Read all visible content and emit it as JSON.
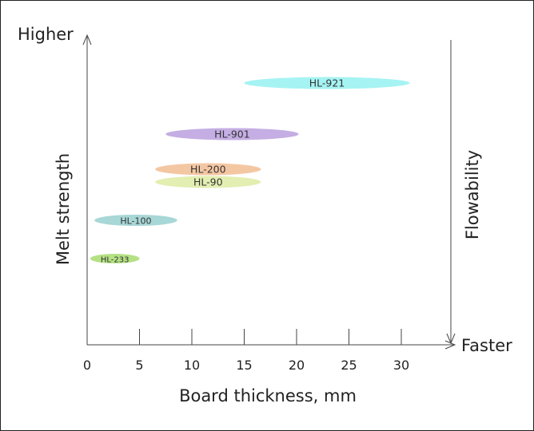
{
  "chart_data": {
    "type": "range",
    "title": "",
    "xlabel": "Board thickness, mm",
    "ylabel": "Melt strength",
    "y_high_label": "Higher",
    "y2label": "Flowability",
    "y2_end_label": "Faster",
    "xlim": [
      0,
      34
    ],
    "ylim": [
      0,
      10
    ],
    "x_ticks": [
      0,
      5,
      10,
      15,
      20,
      25,
      30
    ],
    "grid": false,
    "legend": "none",
    "series": [
      {
        "name": "HL-921",
        "x_start": 15.0,
        "x_end": 30.8,
        "y": 8.2,
        "color": "#a6f3f3"
      },
      {
        "name": "HL-901",
        "x_start": 7.5,
        "x_end": 20.2,
        "y": 6.6,
        "color": "#c4aee3"
      },
      {
        "name": "HL-200",
        "x_start": 6.5,
        "x_end": 16.6,
        "y": 5.5,
        "color": "#f4c7a3"
      },
      {
        "name": "HL-90",
        "x_start": 6.5,
        "x_end": 16.6,
        "y": 5.1,
        "color": "#e3eeb2"
      },
      {
        "name": "HL-100",
        "x_start": 0.7,
        "x_end": 8.6,
        "y": 3.9,
        "color": "#a8d7d7"
      },
      {
        "name": "HL-233",
        "x_start": 0.3,
        "x_end": 5.0,
        "y": 2.7,
        "color": "#b4e184"
      }
    ]
  }
}
